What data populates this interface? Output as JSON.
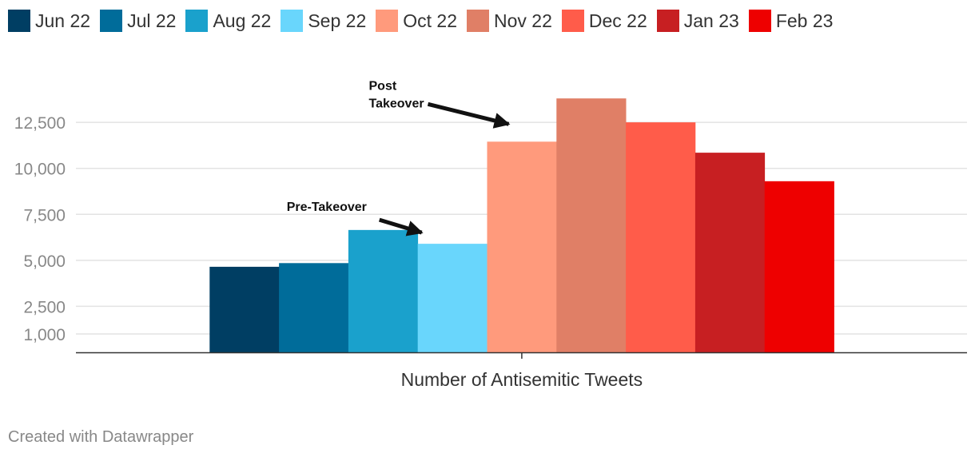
{
  "chart_data": {
    "type": "bar",
    "categories": [
      "Number of Antisemitic Tweets"
    ],
    "series": [
      {
        "name": "Jun 22",
        "color": "#003e63",
        "values": [
          4650
        ]
      },
      {
        "name": "Jul 22",
        "color": "#006c9a",
        "values": [
          4850
        ]
      },
      {
        "name": "Aug 22",
        "color": "#1aa1cc",
        "values": [
          6650
        ]
      },
      {
        "name": "Sep 22",
        "color": "#69d6fc",
        "values": [
          5900
        ]
      },
      {
        "name": "Oct 22",
        "color": "#ff9a7c",
        "values": [
          11450
        ]
      },
      {
        "name": "Nov 22",
        "color": "#e07f66",
        "values": [
          13800
        ]
      },
      {
        "name": "Dec 22",
        "color": "#ff5c4a",
        "values": [
          12500
        ]
      },
      {
        "name": "Jan 23",
        "color": "#c71f22",
        "values": [
          10850
        ]
      },
      {
        "name": "Feb 23",
        "color": "#ee0000",
        "values": [
          9300
        ]
      }
    ],
    "yticks": [
      1000,
      2500,
      5000,
      7500,
      10000,
      12500
    ],
    "ytick_labels": [
      "1,000",
      "2,500",
      "5,000",
      "7,500",
      "10,000",
      "12,500"
    ],
    "ylim": [
      0,
      16000
    ],
    "legend_position": "top",
    "grid": true,
    "annotations": [
      {
        "lines": [
          "Pre-Takeover"
        ],
        "target_series": "Sep 22"
      },
      {
        "lines": [
          "Post",
          "Takeover"
        ],
        "target_series": "Oct 22"
      }
    ]
  },
  "footer": "Created with Datawrapper"
}
